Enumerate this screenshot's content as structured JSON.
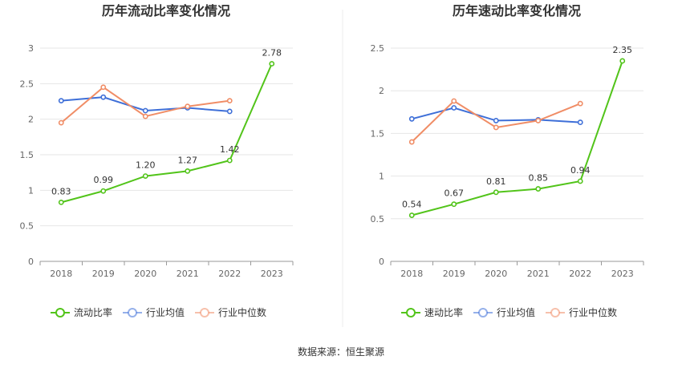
{
  "source": "数据来源：恒生聚源",
  "colors": {
    "primary": "#52c41a",
    "avg": "#3e6fd8",
    "median": "#f08d66",
    "grid": "#e6e6e6",
    "axis": "#999999"
  },
  "chart_data": [
    {
      "type": "line",
      "title": "历年流动比率变化情况",
      "categories": [
        "2018",
        "2019",
        "2020",
        "2021",
        "2022",
        "2023"
      ],
      "ylim": [
        0,
        3
      ],
      "yticks": [
        "0",
        "0.5",
        "1",
        "1.5",
        "2",
        "2.5",
        "3"
      ],
      "grid": true,
      "legend_position": "bottom",
      "series": [
        {
          "name": "流动比率",
          "values": [
            0.83,
            0.99,
            1.2,
            1.27,
            1.42,
            2.78
          ],
          "labels": [
            "0.83",
            "0.99",
            "1.20",
            "1.27",
            "1.42",
            "2.78"
          ],
          "color": "#52c41a"
        },
        {
          "name": "行业均值",
          "values": [
            2.26,
            2.31,
            2.12,
            2.16,
            2.11,
            null
          ],
          "color": "#3e6fd8"
        },
        {
          "name": "行业中位数",
          "values": [
            1.95,
            2.45,
            2.04,
            2.18,
            2.26,
            null
          ],
          "color": "#f08d66"
        }
      ]
    },
    {
      "type": "line",
      "title": "历年速动比率变化情况",
      "categories": [
        "2018",
        "2019",
        "2020",
        "2021",
        "2022",
        "2023"
      ],
      "ylim": [
        0,
        2.5
      ],
      "yticks": [
        "0",
        "0.5",
        "1",
        "1.5",
        "2",
        "2.5"
      ],
      "grid": true,
      "legend_position": "bottom",
      "series": [
        {
          "name": "速动比率",
          "values": [
            0.54,
            0.67,
            0.81,
            0.85,
            0.94,
            2.35
          ],
          "labels": [
            "0.54",
            "0.67",
            "0.81",
            "0.85",
            "0.94",
            "2.35"
          ],
          "color": "#52c41a"
        },
        {
          "name": "行业均值",
          "values": [
            1.67,
            1.8,
            1.65,
            1.66,
            1.63,
            null
          ],
          "color": "#3e6fd8"
        },
        {
          "name": "行业中位数",
          "values": [
            1.4,
            1.88,
            1.57,
            1.65,
            1.85,
            null
          ],
          "color": "#f08d66"
        }
      ]
    }
  ]
}
